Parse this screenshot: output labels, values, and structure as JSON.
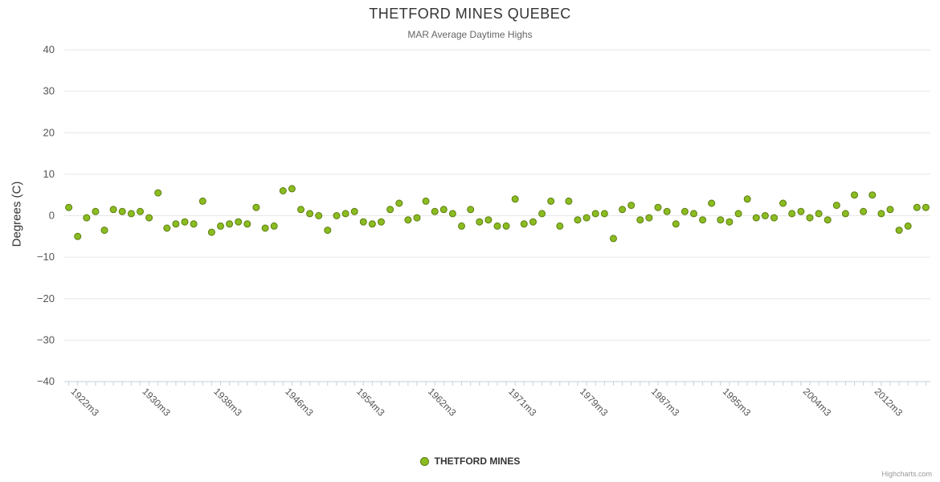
{
  "title": "THETFORD MINES QUEBEC",
  "subtitle": "MAR Average Daytime Highs",
  "credits": "Highcharts.com",
  "legend": {
    "series_label": "THETFORD MINES"
  },
  "chart_data": {
    "type": "scatter",
    "title": "THETFORD MINES QUEBEC",
    "subtitle": "MAR Average Daytime Highs",
    "xlabel": "",
    "ylabel": "Degrees (C)",
    "ylim": [
      -40,
      40
    ],
    "y_tick_interval": 10,
    "grid": true,
    "grid_color": "#e6e6e6",
    "axis_line_color": "#c0d0e0",
    "legend_position": "bottom",
    "x_start_year": 1922,
    "x_suffix": "m3",
    "x_tick_labels": [
      "1922m3",
      "1930m3",
      "1938m3",
      "1946m3",
      "1954m3",
      "1962m3",
      "1971m3",
      "1979m3",
      "1987m3",
      "1995m3",
      "2004m3",
      "2012m3"
    ],
    "series": [
      {
        "name": "THETFORD MINES",
        "color": "#8bbc21",
        "marker_stroke": "#5c7d12",
        "points": [
          [
            1922,
            2
          ],
          [
            1923,
            -5
          ],
          [
            1924,
            -0.5
          ],
          [
            1925,
            1
          ],
          [
            1926,
            -3.5
          ],
          [
            1927,
            1.5
          ],
          [
            1928,
            1
          ],
          [
            1929,
            0.5
          ],
          [
            1930,
            1
          ],
          [
            1931,
            -0.5
          ],
          [
            1932,
            5.5
          ],
          [
            1933,
            -3
          ],
          [
            1934,
            -2
          ],
          [
            1935,
            -1.5
          ],
          [
            1936,
            -2
          ],
          [
            1937,
            3.5
          ],
          [
            1938,
            -4
          ],
          [
            1939,
            -2.5
          ],
          [
            1940,
            -2
          ],
          [
            1941,
            -1.5
          ],
          [
            1942,
            -2
          ],
          [
            1943,
            2
          ],
          [
            1944,
            -3
          ],
          [
            1945,
            -2.5
          ],
          [
            1946,
            6
          ],
          [
            1947,
            6.5
          ],
          [
            1948,
            1.5
          ],
          [
            1949,
            0.5
          ],
          [
            1950,
            0
          ],
          [
            1951,
            -3.5
          ],
          [
            1952,
            0
          ],
          [
            1953,
            0.5
          ],
          [
            1954,
            1
          ],
          [
            1955,
            -1.5
          ],
          [
            1956,
            -2
          ],
          [
            1957,
            -1.5
          ],
          [
            1958,
            1.5
          ],
          [
            1959,
            3
          ],
          [
            1960,
            -1
          ],
          [
            1961,
            -0.5
          ],
          [
            1962,
            3.5
          ],
          [
            1963,
            1
          ],
          [
            1964,
            1.5
          ],
          [
            1965,
            0.5
          ],
          [
            1966,
            -2.5
          ],
          [
            1967,
            1.5
          ],
          [
            1968,
            -1.5
          ],
          [
            1969,
            -1
          ],
          [
            1970,
            -2.5
          ],
          [
            1971,
            -2.5
          ],
          [
            1972,
            4
          ],
          [
            1973,
            -2
          ],
          [
            1974,
            -1.5
          ],
          [
            1975,
            0.5
          ],
          [
            1976,
            3.5
          ],
          [
            1977,
            -2.5
          ],
          [
            1978,
            3.5
          ],
          [
            1979,
            -1
          ],
          [
            1980,
            -0.5
          ],
          [
            1981,
            0.5
          ],
          [
            1982,
            0.5
          ],
          [
            1983,
            -5.5
          ],
          [
            1984,
            1.5
          ],
          [
            1985,
            2.5
          ],
          [
            1986,
            -1
          ],
          [
            1987,
            -0.5
          ],
          [
            1988,
            2
          ],
          [
            1989,
            1
          ],
          [
            1990,
            -2
          ],
          [
            1991,
            1
          ],
          [
            1992,
            0.5
          ],
          [
            1993,
            -1
          ],
          [
            1994,
            3
          ],
          [
            1995,
            -1
          ],
          [
            1996,
            -1.5
          ],
          [
            1997,
            0.5
          ],
          [
            1998,
            4
          ],
          [
            1999,
            -0.5
          ],
          [
            2000,
            0
          ],
          [
            2001,
            -0.5
          ],
          [
            2002,
            3
          ],
          [
            2003,
            0.5
          ],
          [
            2004,
            1
          ],
          [
            2005,
            -0.5
          ],
          [
            2006,
            0.5
          ],
          [
            2007,
            -1
          ],
          [
            2008,
            2.5
          ],
          [
            2009,
            0.5
          ],
          [
            2010,
            5
          ],
          [
            2011,
            1
          ],
          [
            2012,
            5
          ],
          [
            2013,
            0.5
          ],
          [
            2014,
            1.5
          ],
          [
            2015,
            -3.5
          ],
          [
            2016,
            -2.5
          ],
          [
            2017,
            2
          ],
          [
            2018,
            2
          ]
        ]
      }
    ]
  }
}
